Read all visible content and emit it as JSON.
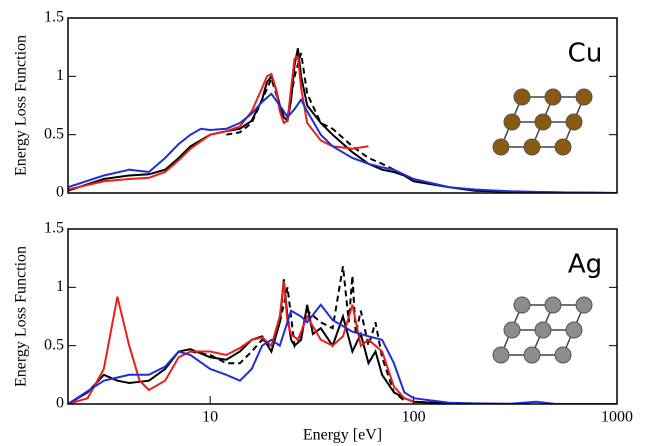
{
  "chart_data": [
    {
      "type": "line",
      "log_x": true,
      "xlim": [
        2,
        1000
      ],
      "ylim": [
        0,
        1.5
      ],
      "yticks": [
        0,
        0.5,
        1,
        1.5
      ],
      "ylabel": "Energy Loss Function",
      "annotation": "Cu",
      "series": [
        {
          "color": "#000000",
          "dash": false,
          "x": [
            2,
            3,
            4,
            5,
            6,
            7,
            8,
            10,
            12,
            14,
            16,
            18,
            19,
            20,
            21,
            22,
            23,
            24,
            25,
            26,
            27,
            28,
            30,
            35,
            40,
            50,
            60,
            70,
            80,
            90,
            100,
            150,
            200,
            300,
            500,
            1000
          ],
          "values": [
            0.02,
            0.12,
            0.15,
            0.16,
            0.2,
            0.3,
            0.4,
            0.5,
            0.53,
            0.55,
            0.62,
            0.8,
            0.95,
            1.0,
            0.9,
            0.75,
            0.65,
            0.62,
            0.8,
            1.1,
            1.24,
            1.0,
            0.75,
            0.6,
            0.5,
            0.35,
            0.25,
            0.2,
            0.18,
            0.15,
            0.1,
            0.05,
            0.02,
            0.01,
            0.005,
            0
          ]
        },
        {
          "color": "#000000",
          "dash": true,
          "x": [
            12,
            14,
            16,
            18,
            20,
            22,
            24,
            26,
            28,
            30,
            35,
            40,
            50,
            60,
            70,
            80,
            90
          ],
          "values": [
            0.5,
            0.52,
            0.6,
            0.8,
            0.98,
            0.75,
            0.65,
            1.0,
            1.2,
            0.85,
            0.6,
            0.55,
            0.4,
            0.3,
            0.25,
            0.2,
            0.15
          ]
        },
        {
          "color": "#e8201c",
          "dash": false,
          "x": [
            2,
            3,
            4,
            5,
            6,
            7,
            8,
            10,
            12,
            14,
            16,
            18,
            19,
            20,
            21,
            22,
            23,
            24,
            25,
            26,
            27,
            28,
            30,
            35,
            40,
            50,
            60
          ],
          "values": [
            0.03,
            0.1,
            0.12,
            0.13,
            0.18,
            0.28,
            0.38,
            0.5,
            0.53,
            0.57,
            0.7,
            0.9,
            1.0,
            1.02,
            0.9,
            0.7,
            0.6,
            0.62,
            0.9,
            1.15,
            1.17,
            0.9,
            0.6,
            0.45,
            0.4,
            0.38,
            0.4
          ]
        },
        {
          "color": "#1f2fd8",
          "dash": false,
          "x": [
            2,
            3,
            4,
            5,
            6,
            7,
            8,
            9,
            10,
            12,
            14,
            16,
            18,
            20,
            22,
            24,
            26,
            28,
            30,
            35,
            40,
            50,
            60,
            70,
            80,
            100,
            150,
            200,
            300,
            500,
            1000
          ],
          "values": [
            0.05,
            0.15,
            0.2,
            0.18,
            0.3,
            0.42,
            0.5,
            0.55,
            0.54,
            0.55,
            0.6,
            0.68,
            0.78,
            0.85,
            0.75,
            0.65,
            0.72,
            0.8,
            0.7,
            0.5,
            0.4,
            0.3,
            0.25,
            0.22,
            0.2,
            0.12,
            0.05,
            0.03,
            0.015,
            0.005,
            0
          ]
        }
      ]
    },
    {
      "type": "line",
      "log_x": true,
      "xlim": [
        2,
        1000
      ],
      "ylim": [
        0,
        1.5
      ],
      "yticks": [
        0,
        0.5,
        1,
        1.5
      ],
      "xticks": [
        10,
        100,
        1000
      ],
      "xlabel": "Energy [eV]",
      "ylabel": "Energy Loss Function",
      "annotation": "Ag",
      "series": [
        {
          "color": "#000000",
          "dash": false,
          "x": [
            2,
            2.5,
            3,
            3.5,
            4,
            5,
            6,
            7,
            8,
            10,
            12,
            14,
            16,
            18,
            20,
            22,
            23,
            24,
            25,
            26,
            28,
            30,
            32,
            35,
            40,
            45,
            50,
            55,
            60,
            65,
            70,
            80,
            90,
            100,
            150,
            200
          ],
          "values": [
            0,
            0.1,
            0.25,
            0.2,
            0.18,
            0.2,
            0.3,
            0.45,
            0.47,
            0.4,
            0.38,
            0.45,
            0.55,
            0.58,
            0.45,
            0.7,
            1.07,
            0.75,
            0.55,
            0.5,
            0.55,
            0.85,
            0.6,
            0.65,
            0.5,
            0.75,
            0.45,
            0.6,
            0.35,
            0.45,
            0.25,
            0.1,
            0.05,
            0.02,
            0.005,
            0
          ]
        },
        {
          "color": "#000000",
          "dash": true,
          "x": [
            8,
            10,
            12,
            14,
            16,
            18,
            20,
            22,
            24,
            26,
            28,
            30,
            35,
            40,
            45,
            48,
            50,
            52,
            55,
            60,
            65,
            70,
            80,
            90
          ],
          "values": [
            0.45,
            0.42,
            0.35,
            0.35,
            0.45,
            0.55,
            0.5,
            0.7,
            1.0,
            0.5,
            0.6,
            0.8,
            0.7,
            0.65,
            1.18,
            0.7,
            1.1,
            0.6,
            0.8,
            0.5,
            0.7,
            0.4,
            0.1,
            0.03
          ]
        },
        {
          "color": "#e8201c",
          "dash": false,
          "x": [
            2,
            2.5,
            3,
            3.5,
            4,
            4.5,
            5,
            6,
            7,
            8,
            10,
            12,
            14,
            16,
            18,
            20,
            22,
            23,
            24,
            25,
            27,
            30,
            35,
            40,
            45,
            50,
            55,
            60,
            65,
            70,
            80,
            90,
            100
          ],
          "values": [
            0,
            0.05,
            0.3,
            0.92,
            0.5,
            0.2,
            0.12,
            0.2,
            0.4,
            0.45,
            0.45,
            0.42,
            0.48,
            0.55,
            0.57,
            0.5,
            0.75,
            1.05,
            0.7,
            0.6,
            0.55,
            0.75,
            0.55,
            0.5,
            0.58,
            0.85,
            0.5,
            0.55,
            0.5,
            0.45,
            0.15,
            0.05,
            0.02
          ]
        },
        {
          "color": "#1f2fd8",
          "dash": false,
          "x": [
            2,
            3,
            4,
            5,
            6,
            7,
            8,
            10,
            12,
            14,
            16,
            18,
            20,
            22,
            25,
            28,
            30,
            35,
            40,
            50,
            60,
            70,
            80,
            90,
            100,
            150,
            200,
            300,
            400,
            500,
            1000
          ],
          "values": [
            0,
            0.2,
            0.25,
            0.25,
            0.32,
            0.45,
            0.42,
            0.3,
            0.25,
            0.2,
            0.3,
            0.5,
            0.55,
            0.5,
            0.8,
            0.75,
            0.7,
            0.85,
            0.72,
            0.62,
            0.58,
            0.55,
            0.35,
            0.1,
            0.05,
            0.01,
            0.005,
            0.002,
            0.02,
            0,
            0
          ]
        }
      ]
    }
  ]
}
